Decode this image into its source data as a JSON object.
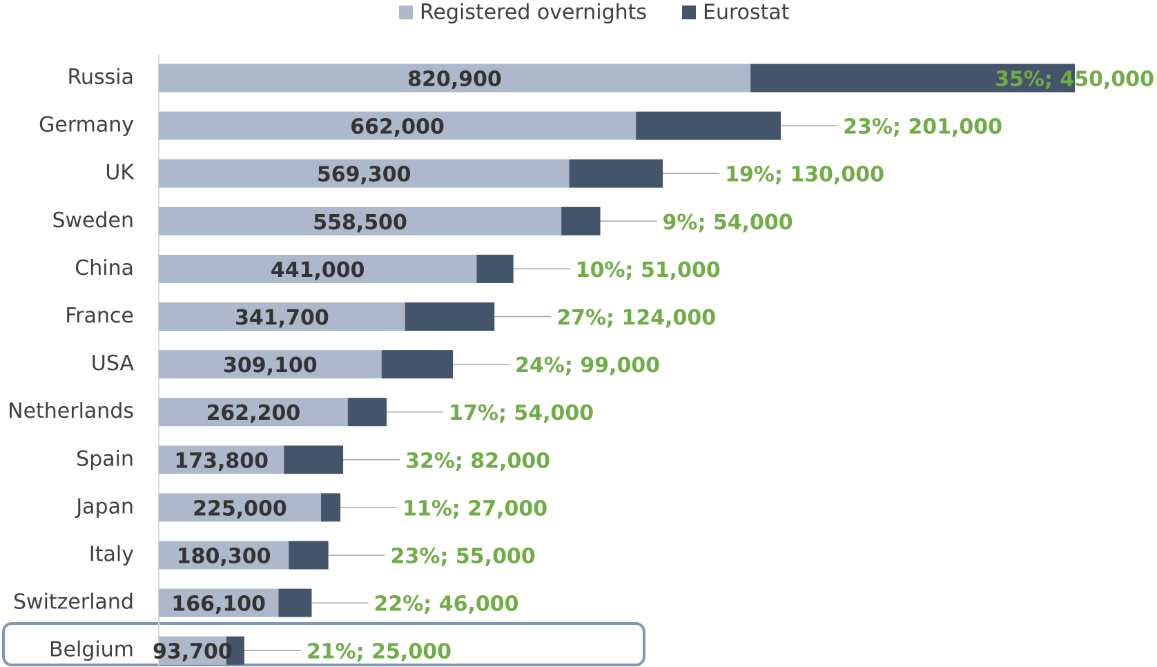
{
  "chart_data": {
    "type": "stacked-bar-horizontal",
    "categories": [
      "Russia",
      "Germany",
      "UK",
      "Sweden",
      "China",
      "France",
      "USA",
      "Netherlands",
      "Spain",
      "Japan",
      "Italy",
      "Switzerland",
      "Belgium"
    ],
    "series": [
      {
        "name": "Registered overnights",
        "color": "#adb9ca",
        "values": [
          820900,
          662000,
          569300,
          558500,
          441000,
          341700,
          309100,
          262200,
          173800,
          225000,
          180300,
          166100,
          93700
        ],
        "value_labels": [
          "820,900",
          "662,000",
          "569,300",
          "558,500",
          "441,000",
          "341,700",
          "309,100",
          "262,200",
          "173,800",
          "225,000",
          "180,300",
          "166,100",
          "93,700"
        ]
      },
      {
        "name": "Eurostat",
        "color": "#44546a",
        "values": [
          450000,
          201000,
          130000,
          54000,
          51000,
          124000,
          99000,
          54000,
          82000,
          27000,
          55000,
          46000,
          25000
        ],
        "value_labels": [
          "35%; 450,000",
          "23%; 201,000",
          "19%; 130,000",
          "9%; 54,000",
          "10%; 51,000",
          "27%; 124,000",
          "24%; 99,000",
          "17%; 54,000",
          "32%; 82,000",
          "11%; 27,000",
          "23%; 55,000",
          "22%; 46,000",
          "21%; 25,000"
        ]
      }
    ],
    "label_color": "#70ad47"
  }
}
